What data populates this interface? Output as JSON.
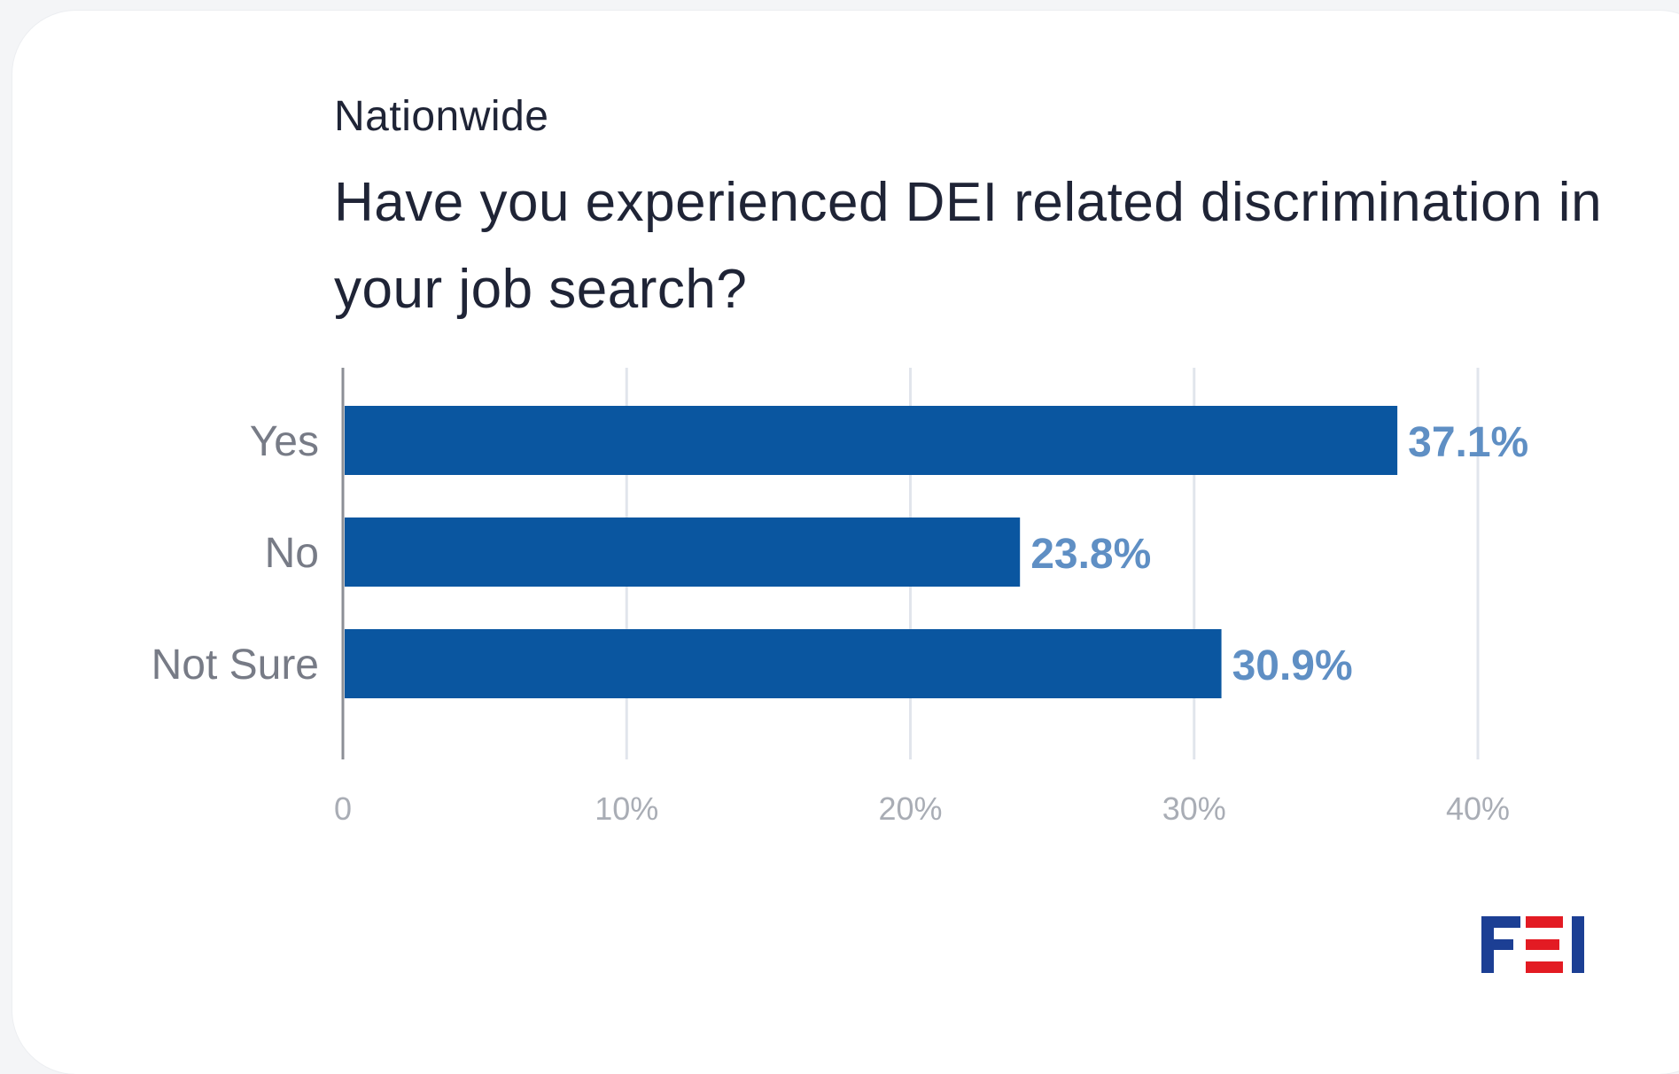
{
  "header": {
    "subtitle": "Nationwide",
    "title": "Have you experienced DEI related discrimination in your job search?"
  },
  "chart_data": {
    "type": "bar",
    "orientation": "horizontal",
    "categories": [
      "Yes",
      "No",
      "Not Sure"
    ],
    "values": [
      37.1,
      23.8,
      30.9
    ],
    "value_labels": [
      "37.1%",
      "23.8%",
      "30.9%"
    ],
    "xlim": [
      0,
      40
    ],
    "x_ticks": [
      0,
      10,
      20,
      30,
      40
    ],
    "x_tick_labels": [
      "0",
      "10%",
      "20%",
      "30%",
      "40%"
    ],
    "grid": true,
    "bar_color": "#0a56a0",
    "label_color": "#5f8fc4"
  },
  "logo": {
    "text": "FEI",
    "primary_color": "#1c3f94",
    "accent_color": "#e31b23"
  }
}
